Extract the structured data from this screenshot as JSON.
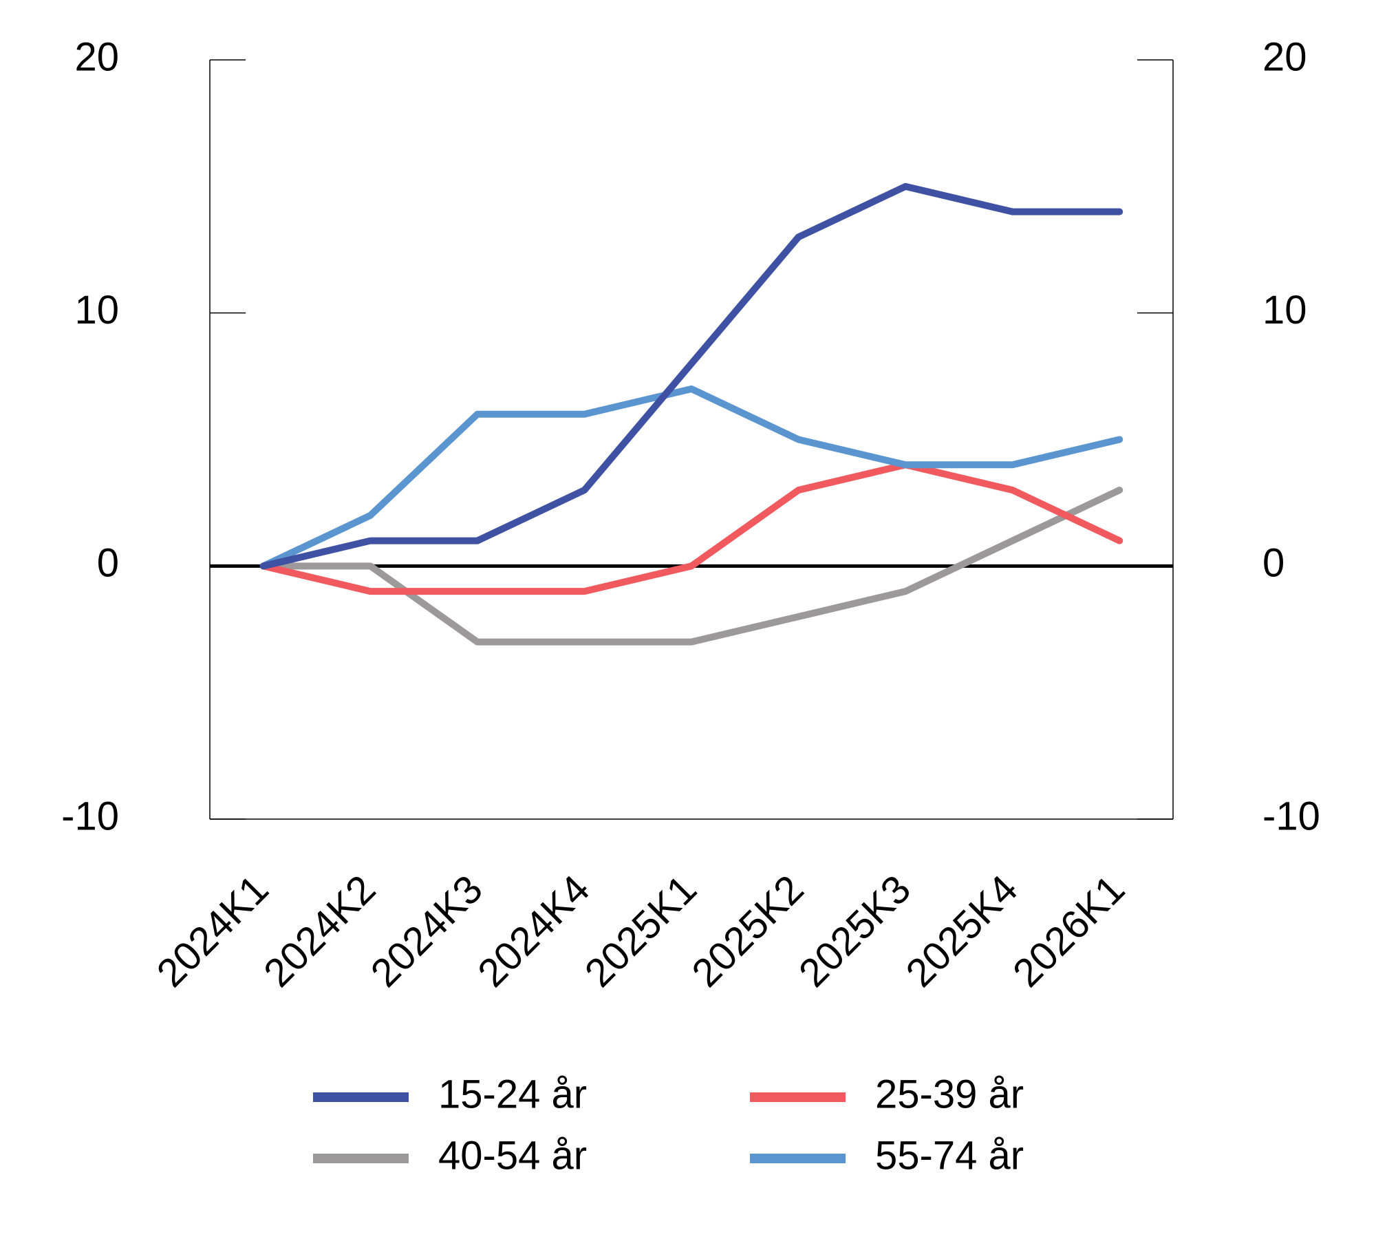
{
  "chart_data": {
    "type": "line",
    "categories": [
      "2024K1",
      "2024K2",
      "2024K3",
      "2024K4",
      "2025K1",
      "2025K2",
      "2025K3",
      "2025K4",
      "2026K1"
    ],
    "series": [
      {
        "name": "15-24 år",
        "color": "#3f51a3",
        "values": [
          0,
          1,
          1,
          3,
          8,
          13,
          15,
          14,
          14
        ]
      },
      {
        "name": "25-39 år",
        "color": "#f05a5e",
        "values": [
          0,
          -1,
          -1,
          -1,
          0,
          3,
          4,
          3,
          1
        ]
      },
      {
        "name": "40-54 år",
        "color": "#9b999a",
        "values": [
          0,
          0,
          -3,
          -3,
          -3,
          -2,
          -1,
          1,
          3
        ]
      },
      {
        "name": "55-74 år",
        "color": "#5b95d0",
        "values": [
          0,
          2,
          6,
          6,
          7,
          5,
          4,
          4,
          5
        ]
      }
    ],
    "ylim": [
      -10,
      20
    ],
    "yticks": [
      -10,
      0,
      10,
      20
    ],
    "y2lim": [
      -10,
      20
    ],
    "y2ticks": [
      -10,
      0,
      10,
      20
    ]
  }
}
